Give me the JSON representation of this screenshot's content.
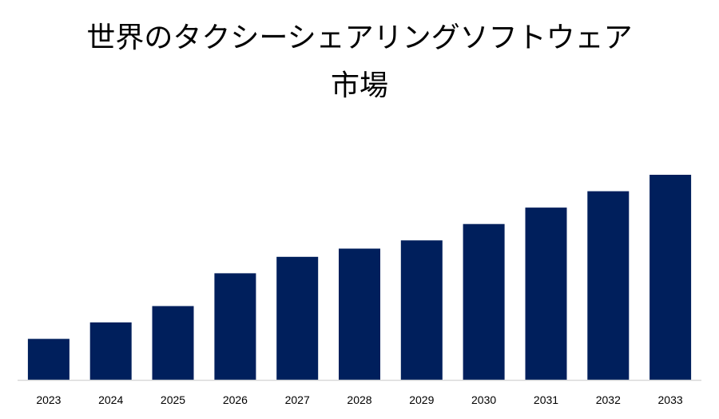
{
  "chart_data": {
    "type": "bar",
    "title_line1": "世界のタクシーシェアリングソフトウェア",
    "title_line2": "市場",
    "categories": [
      "2023",
      "2024",
      "2025",
      "2026",
      "2027",
      "2028",
      "2029",
      "2030",
      "2031",
      "2032",
      "2033"
    ],
    "values": [
      2.0,
      2.8,
      3.6,
      5.2,
      6.0,
      6.4,
      6.8,
      7.6,
      8.4,
      9.2,
      10.0
    ],
    "xlabel": "",
    "ylabel": "",
    "ylim": [
      0,
      10
    ],
    "grid": false,
    "legend": "none",
    "bar_color": "#001F5C",
    "axis_color": "#D9D9D9"
  }
}
